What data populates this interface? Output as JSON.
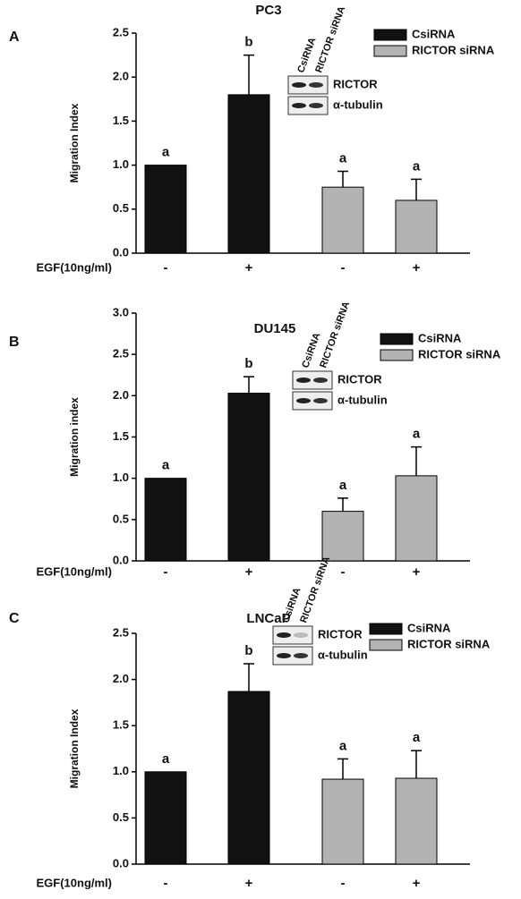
{
  "chart_data": [
    {
      "type": "bar",
      "panel": "A",
      "title": "PC3",
      "ylabel": "Migration Index",
      "xlabel": "EGF(10ng/ml)",
      "categories": [
        "-",
        "+",
        "-",
        "+"
      ],
      "ylim": [
        0,
        2.5
      ],
      "yticks": [
        {
          "value": 0,
          "label": "0.0"
        },
        0.5,
        {
          "value": 1,
          "label": "1.0"
        },
        1.5,
        {
          "value": 2,
          "label": "2.0"
        },
        2.5
      ],
      "series": [
        {
          "name": "CsiRNA",
          "color": "#111111",
          "values": [
            1.0,
            1.8,
            null,
            null
          ],
          "errors": [
            null,
            0.45,
            null,
            null
          ]
        },
        {
          "name": "RICTOR siRNA",
          "color": "#b3b3b3",
          "values": [
            null,
            null,
            0.75,
            0.6
          ],
          "errors": [
            null,
            null,
            0.18,
            0.24
          ]
        }
      ],
      "annotations": [
        "a",
        "b",
        "a",
        "a"
      ],
      "blot": {
        "lanes": [
          "CsiRNA",
          "RICTOR siRNA"
        ],
        "bands": [
          "RICTOR",
          "α-tubulin"
        ]
      }
    },
    {
      "type": "bar",
      "panel": "B",
      "title": "DU145",
      "ylabel": "Migration index",
      "xlabel": "EGF(10ng/ml)",
      "categories": [
        "-",
        "+",
        "-",
        "+"
      ],
      "ylim": [
        0,
        3
      ],
      "yticks": [
        {
          "value": 0,
          "label": "0.0"
        },
        0.5,
        {
          "value": 1,
          "label": "1.0"
        },
        1.5,
        {
          "value": 2,
          "label": "2.0"
        },
        2.5,
        {
          "value": 3,
          "label": "3.0"
        }
      ],
      "series": [
        {
          "name": "CsiRNA",
          "color": "#111111",
          "values": [
            1.0,
            2.03,
            null,
            null
          ],
          "errors": [
            null,
            0.2,
            null,
            null
          ]
        },
        {
          "name": "RICTOR siRNA",
          "color": "#b3b3b3",
          "values": [
            null,
            null,
            0.6,
            1.03
          ],
          "errors": [
            null,
            null,
            0.16,
            0.35
          ]
        }
      ],
      "annotations": [
        "a",
        "b",
        "a",
        "a"
      ],
      "blot": {
        "lanes": [
          "CsiRNA",
          "RICTOR siRNA"
        ],
        "bands": [
          "RICTOR",
          "α-tubulin"
        ]
      }
    },
    {
      "type": "bar",
      "panel": "C",
      "title": "LNCaP",
      "ylabel": "Migration Index",
      "xlabel": "EGF(10ng/ml)",
      "categories": [
        "-",
        "+",
        "-",
        "+"
      ],
      "ylim": [
        0,
        2.5
      ],
      "yticks": [
        {
          "value": 0,
          "label": "0.0"
        },
        0.5,
        {
          "value": 1,
          "label": "1.0"
        },
        1.5,
        {
          "value": 2,
          "label": "2.0"
        },
        2.5
      ],
      "series": [
        {
          "name": "CsiRNA",
          "color": "#111111",
          "values": [
            1.0,
            1.87,
            null,
            null
          ],
          "errors": [
            null,
            0.3,
            null,
            null
          ]
        },
        {
          "name": "RICTOR siRNA",
          "color": "#b3b3b3",
          "values": [
            null,
            null,
            0.92,
            0.93
          ],
          "errors": [
            null,
            null,
            0.22,
            0.3
          ]
        }
      ],
      "annotations": [
        "a",
        "b",
        "a",
        "a"
      ],
      "blot": {
        "lanes": [
          "CsiRNA",
          "RICTOR siRNA"
        ],
        "bands": [
          "RICTOR",
          "α-tubulin"
        ]
      }
    }
  ]
}
